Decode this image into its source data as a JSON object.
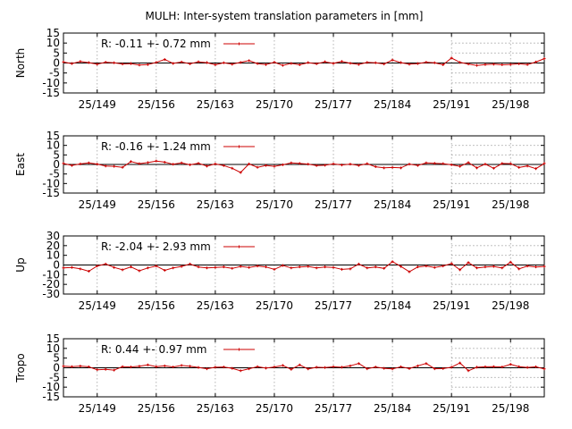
{
  "chart_data": {
    "title": "MULH: Inter-system translation parameters in [mm]",
    "type": "line",
    "x_ticks": [
      {
        "day": 149,
        "label": "25/149"
      },
      {
        "day": 156,
        "label": "25/156"
      },
      {
        "day": 163,
        "label": "25/163"
      },
      {
        "day": 170,
        "label": "25/170"
      },
      {
        "day": 177,
        "label": "25/177"
      },
      {
        "day": 184,
        "label": "25/184"
      },
      {
        "day": 191,
        "label": "25/191"
      },
      {
        "day": 198,
        "label": "25/198"
      }
    ],
    "xlim": [
      145,
      202
    ],
    "colors": {
      "series": "#cc0000",
      "zero_line": "#000000",
      "grid": "#a0a0a0"
    },
    "grid": true,
    "legend_placement": "top-left",
    "panels": [
      {
        "ylabel": "North",
        "ylim": [
          -15,
          15
        ],
        "y_ticks": [
          15,
          10,
          5,
          0,
          -5,
          -10,
          -15
        ],
        "legend": "R:  -0.11 +- 0.72 mm",
        "x": [
          145,
          146,
          147,
          148,
          149,
          150,
          151,
          152,
          153,
          154,
          155,
          156,
          157,
          158,
          159,
          160,
          161,
          162,
          163,
          164,
          165,
          166,
          167,
          168,
          169,
          170,
          171,
          172,
          173,
          174,
          175,
          176,
          177,
          178,
          179,
          180,
          181,
          182,
          183,
          184,
          185,
          186,
          187,
          188,
          189,
          190,
          191,
          192,
          193,
          194,
          195,
          196,
          197,
          198,
          199,
          200,
          201,
          202
        ],
        "y": [
          0.5,
          -0.3,
          0.8,
          0.2,
          -0.6,
          0.4,
          0.1,
          -0.5,
          -0.3,
          -1.0,
          -0.8,
          0.3,
          1.8,
          -0.2,
          0.5,
          -0.4,
          0.6,
          0.2,
          -0.9,
          0.1,
          -0.6,
          0.3,
          1.2,
          -0.3,
          -0.8,
          0.4,
          -1.2,
          -0.2,
          -0.9,
          0.2,
          -0.4,
          0.6,
          -0.2,
          0.8,
          -0.1,
          -0.7,
          0.3,
          0.1,
          -0.5,
          1.5,
          0.2,
          -0.6,
          -0.3,
          0.4,
          0.1,
          -0.9,
          2.5,
          0.3,
          -0.5,
          -1.2,
          -0.8,
          -0.6,
          -0.9,
          -0.7,
          -0.4,
          -0.8,
          0.5,
          2.2
        ]
      },
      {
        "ylabel": "East",
        "ylim": [
          -15,
          15
        ],
        "y_ticks": [
          15,
          10,
          5,
          0,
          -5,
          -10,
          -15
        ],
        "legend": "R:  -0.16 +- 1.24 mm",
        "x": [
          145,
          146,
          147,
          148,
          149,
          150,
          151,
          152,
          153,
          154,
          155,
          156,
          157,
          158,
          159,
          160,
          161,
          162,
          163,
          164,
          165,
          166,
          167,
          168,
          169,
          170,
          171,
          172,
          173,
          174,
          175,
          176,
          177,
          178,
          179,
          180,
          181,
          182,
          183,
          184,
          185,
          186,
          187,
          188,
          189,
          190,
          191,
          192,
          193,
          194,
          195,
          196,
          197,
          198,
          199,
          200,
          201,
          202
        ],
        "y": [
          0.5,
          -0.5,
          0.3,
          0.8,
          0.2,
          -0.8,
          -1.0,
          -1.5,
          1.5,
          0.4,
          1.0,
          1.8,
          1.2,
          0.1,
          0.8,
          -0.2,
          0.6,
          -0.9,
          0.3,
          -0.6,
          -2.0,
          -4.2,
          0.3,
          -1.5,
          -0.5,
          -1.0,
          -0.2,
          0.8,
          0.5,
          0.2,
          -0.6,
          -0.4,
          0.3,
          -0.3,
          0.2,
          -0.5,
          0.4,
          -1.2,
          -1.8,
          -1.6,
          -1.8,
          0.2,
          -0.5,
          0.8,
          0.6,
          0.4,
          -0.2,
          -1.0,
          1.0,
          -1.8,
          0.2,
          -2.0,
          0.5,
          0.4,
          -1.6,
          -0.8,
          -2.2,
          0.5
        ]
      },
      {
        "ylabel": "Up",
        "ylim": [
          -30,
          30
        ],
        "y_ticks": [
          30,
          20,
          10,
          0,
          -10,
          -20,
          -30
        ],
        "legend": "R:  -2.04 +- 2.93 mm",
        "x": [
          145,
          146,
          147,
          148,
          149,
          150,
          151,
          152,
          153,
          154,
          155,
          156,
          157,
          158,
          159,
          160,
          161,
          162,
          163,
          164,
          165,
          166,
          167,
          168,
          169,
          170,
          171,
          172,
          173,
          174,
          175,
          176,
          177,
          178,
          179,
          180,
          181,
          182,
          183,
          184,
          185,
          186,
          187,
          188,
          189,
          190,
          191,
          192,
          193,
          194,
          195,
          196,
          197,
          198,
          199,
          200,
          201,
          202
        ],
        "y": [
          -3.0,
          -2.5,
          -4.0,
          -6.5,
          -1.0,
          1.0,
          -2.5,
          -5.0,
          -2.0,
          -6.0,
          -3.0,
          -1.0,
          -5.5,
          -3.0,
          -1.5,
          1.0,
          -2.0,
          -3.0,
          -2.5,
          -2.0,
          -3.5,
          -1.5,
          -2.5,
          -1.0,
          -2.0,
          -4.5,
          -0.5,
          -3.0,
          -2.0,
          -1.5,
          -3.0,
          -2.0,
          -2.5,
          -4.5,
          -4.0,
          1.0,
          -3.0,
          -2.0,
          -3.5,
          3.5,
          -1.5,
          -7.0,
          -2.0,
          -1.0,
          -2.5,
          -1.0,
          1.5,
          -5.0,
          2.5,
          -3.0,
          -2.0,
          -1.5,
          -3.0,
          3.0,
          -4.0,
          -1.0,
          -2.0,
          -1.5
        ]
      },
      {
        "ylabel": "Tropo",
        "ylim": [
          -15,
          15
        ],
        "y_ticks": [
          15,
          10,
          5,
          0,
          -5,
          -10,
          -15
        ],
        "legend": "R:  0.44 +- 0.97 mm",
        "x": [
          145,
          146,
          147,
          148,
          149,
          150,
          151,
          152,
          153,
          154,
          155,
          156,
          157,
          158,
          159,
          160,
          161,
          162,
          163,
          164,
          165,
          166,
          167,
          168,
          169,
          170,
          171,
          172,
          173,
          174,
          175,
          176,
          177,
          178,
          179,
          180,
          181,
          182,
          183,
          184,
          185,
          186,
          187,
          188,
          189,
          190,
          191,
          192,
          193,
          194,
          195,
          196,
          197,
          198,
          199,
          200,
          201,
          202
        ],
        "y": [
          0.8,
          0.6,
          0.9,
          0.5,
          -1.0,
          -0.8,
          -1.2,
          0.6,
          0.4,
          0.8,
          1.5,
          0.6,
          1.0,
          0.4,
          1.2,
          0.8,
          0.2,
          -0.5,
          0.3,
          0.4,
          -0.3,
          -1.5,
          -0.5,
          0.6,
          -0.2,
          0.4,
          1.2,
          -0.8,
          1.5,
          -0.6,
          0.3,
          0.1,
          0.5,
          0.3,
          1.0,
          2.2,
          -0.5,
          0.4,
          -0.3,
          -0.6,
          0.5,
          -0.4,
          1.0,
          2.2,
          -0.5,
          -0.4,
          0.3,
          2.5,
          -1.5,
          0.3,
          0.5,
          0.6,
          0.4,
          1.8,
          0.6,
          0.2,
          0.5,
          -0.6
        ]
      }
    ]
  }
}
